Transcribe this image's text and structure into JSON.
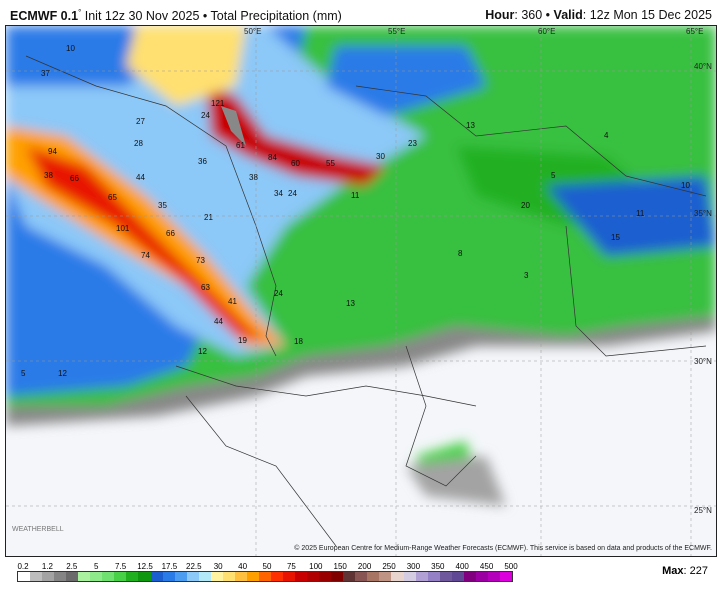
{
  "header": {
    "model": "ECMWF 0.1",
    "degree": "°",
    "init": "Init 12z 30 Nov 2025",
    "separator": "•",
    "product": "Total Precipitation (mm)",
    "hour_label": "Hour",
    "hour": "360",
    "valid_label": "Valid",
    "valid": "12z Mon 15 Dec 2025"
  },
  "map": {
    "lon_labels": [
      "50°E",
      "55°E",
      "60°E",
      "65°E"
    ],
    "lat_labels": [
      "40°N",
      "35°N",
      "30°N",
      "25°N"
    ],
    "value_labels": [
      "37",
      "10",
      "121",
      "24",
      "27",
      "28",
      "94",
      "38",
      "66",
      "61",
      "84",
      "60",
      "55",
      "30",
      "23",
      "13",
      "36",
      "44",
      "65",
      "35",
      "38",
      "34",
      "24",
      "11",
      "21",
      "101",
      "74",
      "66",
      "73",
      "20",
      "10",
      "11",
      "15",
      "63",
      "41",
      "24",
      "44",
      "13",
      "19",
      "18",
      "12",
      "12",
      "5",
      "4",
      "5",
      "8",
      "3"
    ],
    "logo": "WEATHERBELL"
  },
  "credit": "© 2025 European Centre for Medium-Range Weather Forecasts (ECMWF). This service is based on data and products of the ECMWF.",
  "legend": {
    "ticks": [
      "0.2",
      "1.2",
      "2.5",
      "5",
      "7.5",
      "12.5",
      "17.5",
      "22.5",
      "30",
      "40",
      "50",
      "75",
      "100",
      "150",
      "200",
      "250",
      "300",
      "350",
      "400",
      "450",
      "500"
    ],
    "colors": [
      "#ffffff",
      "#bdbdbd",
      "#a3a3a3",
      "#858585",
      "#6b6b6b",
      "#aaf2a0",
      "#8ee98a",
      "#70e070",
      "#48d048",
      "#20b020",
      "#0f980f",
      "#1a5ed0",
      "#2a7ae8",
      "#4c9cf2",
      "#8cc8f8",
      "#b2e8f8",
      "#fff2a0",
      "#ffe070",
      "#ffc040",
      "#ffa000",
      "#ff6400",
      "#ff3000",
      "#e81400",
      "#c80000",
      "#b00000",
      "#980000",
      "#800000",
      "#603434",
      "#885454",
      "#a87464",
      "#c09484",
      "#e8d4cc",
      "#d4cce0",
      "#b0a0d4",
      "#9480c4",
      "#70589c",
      "#604894",
      "#800080",
      "#9a00a2",
      "#b400ba",
      "#dc00dc"
    ]
  },
  "max": {
    "label": "Max",
    "value": "227"
  }
}
